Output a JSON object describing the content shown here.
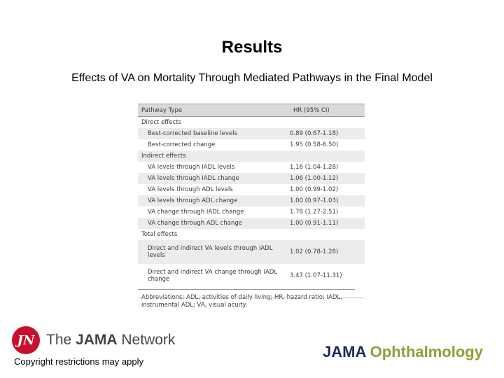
{
  "slide": {
    "title": "Results",
    "subtitle": "Effects of VA on Mortality Through Mediated Pathways in the Final Model"
  },
  "table": {
    "headers": [
      "Pathway Type",
      "HR (95% CI)"
    ],
    "rows": [
      {
        "type": "section",
        "label": "Direct effects",
        "value": ""
      },
      {
        "type": "item",
        "label": "Best-corrected baseline levels",
        "value": "0.89 (0.67-1.18)"
      },
      {
        "type": "item",
        "label": "Best-corrected change",
        "value": "1.95 (0.58-6.50)"
      },
      {
        "type": "section",
        "label": "Indirect effects",
        "value": ""
      },
      {
        "type": "item",
        "label": "VA levels through IADL levels",
        "value": "1.16 (1.04-1.28)"
      },
      {
        "type": "item",
        "label": "VA levels through IADL change",
        "value": "1.06 (1.00-1.12)"
      },
      {
        "type": "item",
        "label": "VA levels through ADL levels",
        "value": "1.00 (0.99-1.02)"
      },
      {
        "type": "item",
        "label": "VA levels through ADL change",
        "value": "1.00 (0.97-1.03)"
      },
      {
        "type": "item",
        "label": "VA change through IADL change",
        "value": "1.78 (1.27-2.51)"
      },
      {
        "type": "item",
        "label": "VA change through ADL change",
        "value": "1.00 (0.91-1.11)"
      },
      {
        "type": "section",
        "label": "Total effects",
        "value": ""
      },
      {
        "type": "item",
        "label": "Direct and indirect VA levels through IADL levels",
        "value": "1.02 (0.78-1.28)"
      },
      {
        "type": "item",
        "label": "Direct and indirect VA change through IADL change",
        "value": "3.47 (1.07-11.31)"
      }
    ],
    "footnote": "Abbreviations: ADL, activities of daily living; HR, hazard ratio; IADL, instrumental ADL; VA, visual acuity."
  },
  "branding": {
    "logo_mark": "JN",
    "network_prefix": "The ",
    "network_bold": "JAMA",
    "network_suffix": " Network",
    "copyright": "Copyright restrictions may apply",
    "journal_part1": "JAMA ",
    "journal_part2": "Ophthalmology"
  }
}
